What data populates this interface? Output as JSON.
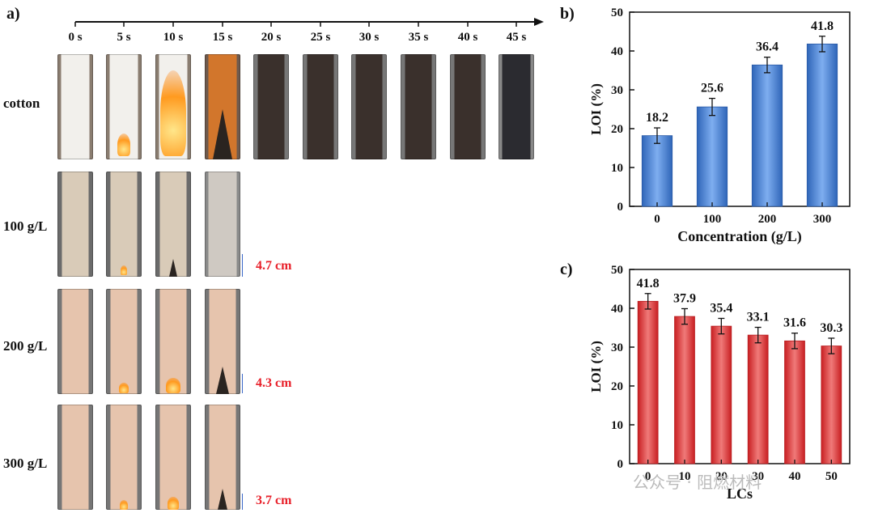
{
  "panels": {
    "a": "a)",
    "b": "b)",
    "c": "c)"
  },
  "timeline": [
    "0 s",
    "5 s",
    "10 s",
    "15 s",
    "20 s",
    "25 s",
    "30 s",
    "35 s",
    "40 s",
    "45 s"
  ],
  "rows": [
    "cotton",
    "100 g/L",
    "200 g/L",
    "300 g/L"
  ],
  "measurements": [
    "4.7 cm",
    "4.3 cm",
    "3.7 cm"
  ],
  "watermark": "公众号 · 阻燃材料",
  "colors": {
    "blue": "#3f7ad0",
    "red": "#e0393c",
    "measure": "#e8202a"
  },
  "chart_data": [
    {
      "type": "bar",
      "panel": "b)",
      "categories": [
        "0",
        "100",
        "200",
        "300"
      ],
      "values": [
        18.2,
        25.6,
        36.4,
        41.8
      ],
      "errors": [
        2.0,
        2.2,
        2.0,
        2.0
      ],
      "value_labels": [
        "18.2",
        "25.6",
        "36.4",
        "41.8"
      ],
      "xlabel": "Concentration (g/L)",
      "ylabel": "LOI (%)",
      "ylim": [
        0,
        50
      ],
      "yticks": [
        "0",
        "10",
        "20",
        "30",
        "40",
        "50"
      ]
    },
    {
      "type": "bar",
      "panel": "c)",
      "categories": [
        "0",
        "10",
        "20",
        "30",
        "40",
        "50"
      ],
      "values": [
        41.8,
        37.9,
        35.4,
        33.1,
        31.6,
        30.3
      ],
      "errors": [
        2.0,
        2.0,
        2.0,
        2.0,
        2.0,
        2.0
      ],
      "value_labels": [
        "41.8",
        "37.9",
        "35.4",
        "33.1",
        "31.6",
        "30.3"
      ],
      "xlabel": "LCs",
      "ylabel": "LOI (%)",
      "ylim": [
        0,
        50
      ],
      "yticks": [
        "0",
        "10",
        "20",
        "30",
        "40",
        "50"
      ]
    }
  ]
}
